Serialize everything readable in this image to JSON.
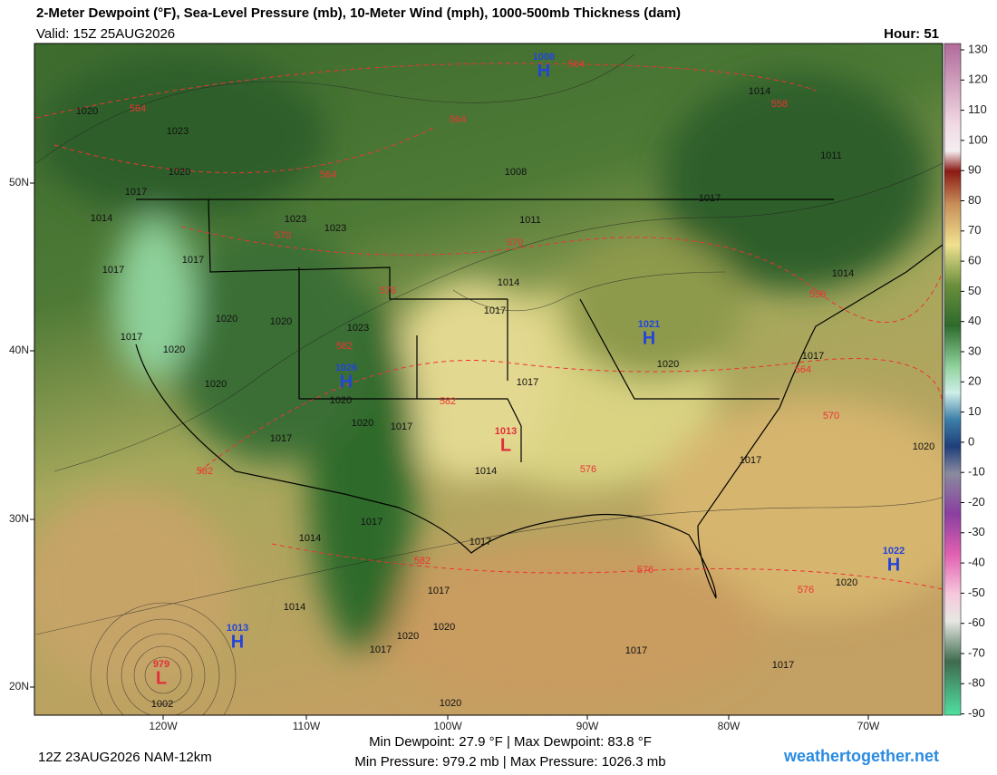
{
  "header": {
    "title": "2-Meter Dewpoint (°F), Sea-Level Pressure (mb), 10-Meter Wind (mph), 1000-500mb Thickness (dam)",
    "valid": "Valid: 15Z 25AUG2026",
    "hour": "Hour: 51"
  },
  "colorbar": {
    "ticks": [
      130,
      120,
      110,
      100,
      90,
      80,
      70,
      60,
      50,
      40,
      30,
      20,
      10,
      0,
      -10,
      -20,
      -30,
      -40,
      -50,
      -60,
      -70,
      -80,
      -90
    ]
  },
  "latitude_labels": [
    "50N",
    "40N",
    "30N",
    "20N"
  ],
  "longitude_labels": [
    "120W",
    "110W",
    "100W",
    "90W",
    "80W",
    "70W"
  ],
  "pressure_centers": [
    {
      "letter": "H",
      "value": "1008"
    },
    {
      "letter": "H",
      "value": "1021"
    },
    {
      "letter": "H",
      "value": "1026"
    },
    {
      "letter": "L",
      "value": "1013"
    },
    {
      "letter": "H",
      "value": "1013"
    },
    {
      "letter": "H",
      "value": "1022"
    },
    {
      "letter": "L",
      "value": "979"
    }
  ],
  "isobar_labels": [
    "1020",
    "1023",
    "1020",
    "1017",
    "1014",
    "1023",
    "1023",
    "1017",
    "1017",
    "1020",
    "1020",
    "1023",
    "1017",
    "1020",
    "1020",
    "1020",
    "1020",
    "1017",
    "1017",
    "1014",
    "1017",
    "1017",
    "1014",
    "1011",
    "1008",
    "1017",
    "1014",
    "1011",
    "1014",
    "1017",
    "1020",
    "1017",
    "1020",
    "1017",
    "1014",
    "1017",
    "1017",
    "1020",
    "1014",
    "1020",
    "1017",
    "1020",
    "1002",
    "1017",
    "1017",
    "1020"
  ],
  "thickness_labels": [
    "564",
    "558",
    "564",
    "564",
    "564",
    "570",
    "570",
    "576",
    "558",
    "582",
    "564",
    "582",
    "570",
    "582",
    "576",
    "582",
    "576",
    "576"
  ],
  "footer": {
    "run": "12Z 23AUG2026 NAM-12km",
    "dewpoint": "Min Dewpoint:  27.9 °F | Max Dewpoint:  83.8 °F",
    "pressure": "Min Pressure: 979.2 mb | Max Pressure: 1026.3 mb",
    "site": "weathertogether.net"
  }
}
